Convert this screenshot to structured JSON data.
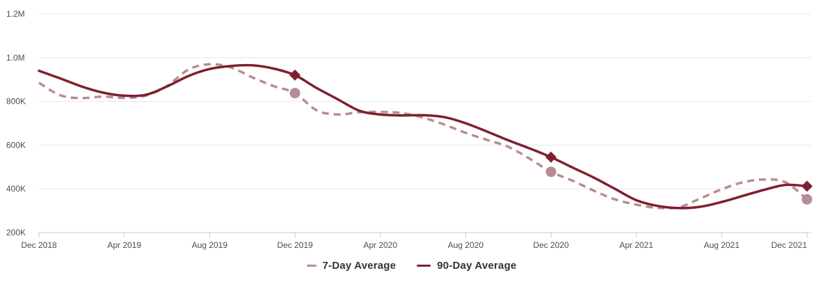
{
  "chart_data": {
    "type": "line",
    "title": "",
    "xlabel": "",
    "ylabel": "",
    "grid": "horizontal",
    "legend_position": "bottom",
    "y_tick_labels": [
      "200K",
      "400K",
      "600K",
      "800K",
      "1.0M",
      "1.2M"
    ],
    "y_tick_values_k": [
      200,
      400,
      600,
      800,
      1000,
      1200
    ],
    "ylim_k": [
      200,
      1200
    ],
    "x_tick_labels": [
      "Dec 2018",
      "Apr 2019",
      "Aug 2019",
      "Dec 2019",
      "Apr 2020",
      "Aug 2020",
      "Dec 2020",
      "Apr 2021",
      "Aug 2021",
      "Dec 2021"
    ],
    "x_tick_month_indices": [
      0,
      4,
      8,
      12,
      16,
      20,
      24,
      28,
      32,
      36
    ],
    "x_months": [
      "2018-12",
      "2019-01",
      "2019-02",
      "2019-03",
      "2019-04",
      "2019-05",
      "2019-06",
      "2019-07",
      "2019-08",
      "2019-09",
      "2019-10",
      "2019-11",
      "2019-12",
      "2020-01",
      "2020-02",
      "2020-03",
      "2020-04",
      "2020-05",
      "2020-06",
      "2020-07",
      "2020-08",
      "2020-09",
      "2020-10",
      "2020-11",
      "2020-12",
      "2021-01",
      "2021-02",
      "2021-03",
      "2021-04",
      "2021-05",
      "2021-06",
      "2021-07",
      "2021-08",
      "2021-09",
      "2021-10",
      "2021-11",
      "2021-12"
    ],
    "marker_month_indices": [
      12,
      24,
      36
    ],
    "series": [
      {
        "name": "7-Day Average",
        "style": "dashed",
        "color": "#b68d96",
        "marker": "circle",
        "values_k": [
          885,
          828,
          815,
          822,
          816,
          826,
          870,
          945,
          970,
          955,
          910,
          870,
          838,
          760,
          740,
          750,
          752,
          747,
          726,
          694,
          656,
          624,
          592,
          538,
          478,
          438,
          392,
          352,
          328,
          313,
          316,
          356,
          398,
          430,
          443,
          430,
          352
        ],
        "marker_values_k": [
          838,
          478,
          352
        ]
      },
      {
        "name": "90-Day Average",
        "style": "solid",
        "color": "#7f1f2e",
        "marker": "diamond",
        "values_k": [
          940,
          905,
          868,
          840,
          826,
          830,
          868,
          916,
          948,
          962,
          965,
          950,
          920,
          862,
          810,
          758,
          740,
          736,
          737,
          728,
          700,
          662,
          622,
          585,
          545,
          498,
          452,
          400,
          348,
          322,
          312,
          318,
          340,
          368,
          396,
          418,
          412
        ],
        "marker_values_k": [
          920,
          545,
          412
        ]
      }
    ]
  },
  "colors": {
    "gridline": "#e7e7e7",
    "axis_line": "#c9c9c9",
    "axis_text": "#4d4d4d",
    "legend_text": "#333333",
    "background": "#ffffff"
  }
}
